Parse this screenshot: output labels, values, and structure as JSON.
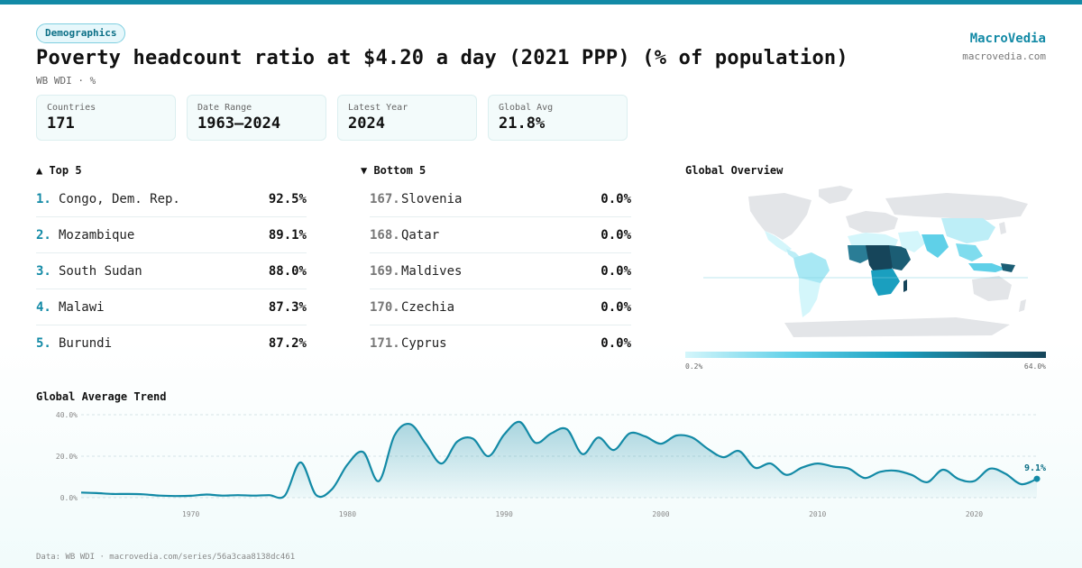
{
  "header": {
    "badge": "Demographics",
    "title": "Poverty headcount ratio at $4.20 a day (2021 PPP) (% of population)",
    "subtitle": "WB WDI · %",
    "brand": "MacroVedia",
    "brand_url": "macrovedia.com"
  },
  "stats": [
    {
      "label": "Countries",
      "value": "171"
    },
    {
      "label": "Date Range",
      "value": "1963–2024"
    },
    {
      "label": "Latest Year",
      "value": "2024"
    },
    {
      "label": "Global Avg",
      "value": "21.8%"
    }
  ],
  "top5": {
    "heading": "▲ Top 5",
    "rows": [
      {
        "rank": "1.",
        "name": "Congo, Dem. Rep.",
        "value": "92.5%"
      },
      {
        "rank": "2.",
        "name": "Mozambique",
        "value": "89.1%"
      },
      {
        "rank": "3.",
        "name": "South Sudan",
        "value": "88.0%"
      },
      {
        "rank": "4.",
        "name": "Malawi",
        "value": "87.3%"
      },
      {
        "rank": "5.",
        "name": "Burundi",
        "value": "87.2%"
      }
    ]
  },
  "bottom5": {
    "heading": "▼ Bottom 5",
    "rows": [
      {
        "rank": "167.",
        "name": "Slovenia",
        "value": "0.0%"
      },
      {
        "rank": "168.",
        "name": "Qatar",
        "value": "0.0%"
      },
      {
        "rank": "169.",
        "name": "Maldives",
        "value": "0.0%"
      },
      {
        "rank": "170.",
        "name": "Czechia",
        "value": "0.0%"
      },
      {
        "rank": "171.",
        "name": "Cyprus",
        "value": "0.0%"
      }
    ]
  },
  "map": {
    "heading": "Global Overview",
    "legend_min": "0.2%",
    "legend_max": "64.0%",
    "colors": {
      "low": "#d4f6fb",
      "mid": "#1a9fbf",
      "high": "#16455a",
      "nodata": "#e3e5e8"
    }
  },
  "trend": {
    "heading": "Global Average Trend",
    "last_label": "9.1%"
  },
  "footer": "Data: WB WDI · macrovedia.com/series/56a3caa8138dc461",
  "chart_data": {
    "type": "area",
    "title": "Global Average Trend",
    "xlabel": "",
    "ylabel": "",
    "ylim": [
      0,
      40
    ],
    "xlim": [
      1963,
      2024
    ],
    "yticks": [
      "0.0%",
      "20.0%",
      "40.0%"
    ],
    "ytick_values": [
      0,
      20,
      40
    ],
    "xticks": [
      1970,
      1980,
      1990,
      2000,
      2010,
      2020
    ],
    "grid": true,
    "color": "#138aa6",
    "x": [
      1963,
      1964,
      1965,
      1966,
      1967,
      1968,
      1969,
      1970,
      1971,
      1972,
      1973,
      1974,
      1975,
      1976,
      1977,
      1978,
      1979,
      1980,
      1981,
      1982,
      1983,
      1984,
      1985,
      1986,
      1987,
      1988,
      1989,
      1990,
      1991,
      1992,
      1993,
      1994,
      1995,
      1996,
      1997,
      1998,
      1999,
      2000,
      2001,
      2002,
      2003,
      2004,
      2005,
      2006,
      2007,
      2008,
      2009,
      2010,
      2011,
      2012,
      2013,
      2014,
      2015,
      2016,
      2017,
      2018,
      2019,
      2020,
      2021,
      2022,
      2023,
      2024
    ],
    "y": [
      2.5,
      2.2,
      1.8,
      1.8,
      1.6,
      1.0,
      0.8,
      0.9,
      1.5,
      1.0,
      1.2,
      1.0,
      1.2,
      1.0,
      17.0,
      1.2,
      4.0,
      16.0,
      22.0,
      8.0,
      30.0,
      35.5,
      26.0,
      16.5,
      27.0,
      28.5,
      20.0,
      30.5,
      36.5,
      26.5,
      31.0,
      33.0,
      21.0,
      29.0,
      23.0,
      31.0,
      29.5,
      26.0,
      30.0,
      29.0,
      23.5,
      19.5,
      22.5,
      14.5,
      16.5,
      11.0,
      14.5,
      16.5,
      15.0,
      14.0,
      9.5,
      12.5,
      13.0,
      11.0,
      7.5,
      13.5,
      9.0,
      8.0,
      14.0,
      11.5,
      6.5,
      9.1
    ]
  }
}
